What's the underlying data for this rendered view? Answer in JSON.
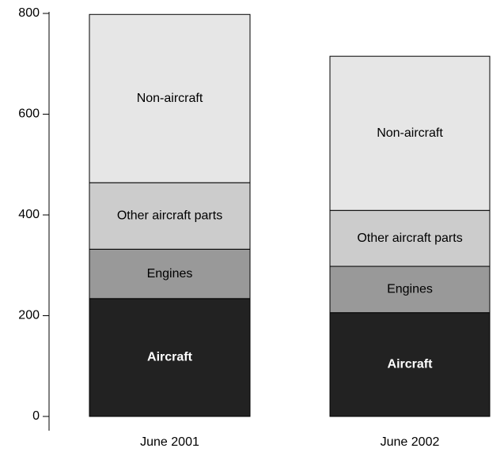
{
  "chart_data": {
    "type": "stacked_bar",
    "categories": [
      "June 2001",
      "June 2002"
    ],
    "series": [
      {
        "name": "Aircraft",
        "color": "#222222",
        "values": [
          234,
          206
        ]
      },
      {
        "name": "Engines",
        "color": "#999999",
        "values": [
          98,
          92
        ]
      },
      {
        "name": "Other aircraft parts",
        "color": "#cccccc",
        "values": [
          132,
          111
        ]
      },
      {
        "name": "Non-aircraft",
        "color": "#e6e6e6",
        "values": [
          334,
          306
        ]
      }
    ],
    "ylim": [
      0,
      800
    ],
    "yticks": [
      0,
      200,
      400,
      600,
      800
    ]
  }
}
